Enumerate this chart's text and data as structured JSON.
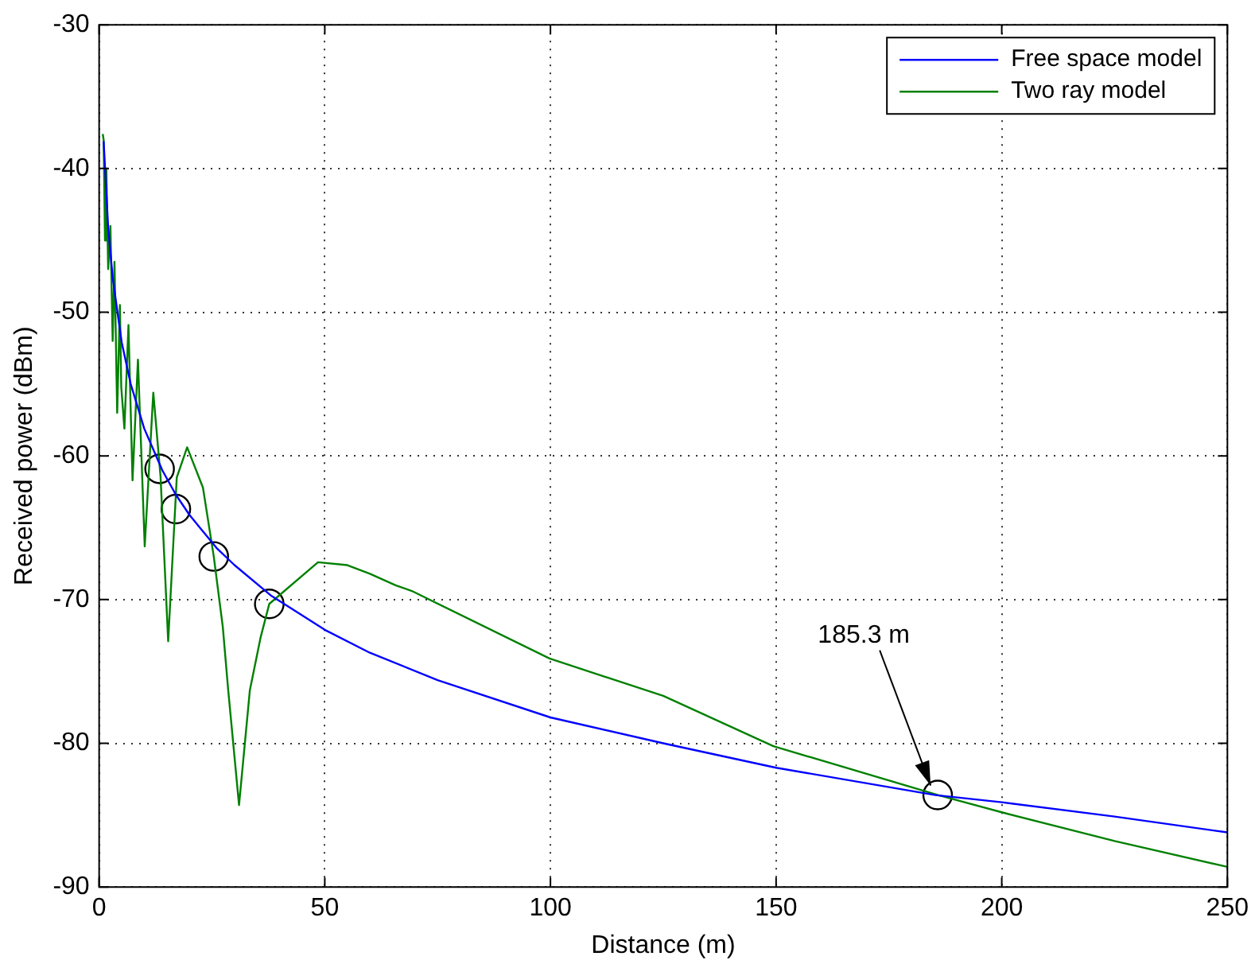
{
  "chart_data": {
    "type": "line",
    "xlabel": "Distance (m)",
    "ylabel": "Received power (dBm)",
    "xlim": [
      0,
      250
    ],
    "xticks": [
      0,
      50,
      100,
      150,
      200,
      250
    ],
    "ylim": [
      -90,
      -30
    ],
    "yticks": [
      -90,
      -80,
      -70,
      -60,
      -50,
      -40,
      -30
    ],
    "grid": true,
    "legend": "top right",
    "marker": "none",
    "line_style": "solid",
    "series": [
      {
        "name": "Free space model",
        "color": "#0000ff",
        "x": [
          1,
          2,
          3,
          5,
          7,
          10,
          14,
          17,
          20,
          26,
          30,
          38,
          50,
          60,
          75,
          100,
          125,
          150,
          185.3,
          200,
          225,
          250
        ],
        "values": [
          -38.1,
          -44.1,
          -47.6,
          -52.1,
          -55,
          -58.1,
          -61,
          -62.7,
          -64.1,
          -66.4,
          -67.6,
          -69.7,
          -72.1,
          -73.7,
          -75.6,
          -78.2,
          -80,
          -81.7,
          -83.6,
          -84.1,
          -85.1,
          -86.2
        ]
      },
      {
        "name": "Two ray model",
        "color": "#008000",
        "x": [
          0.8,
          1,
          1.3,
          1.6,
          2,
          2.5,
          3,
          3.4,
          4,
          4.6,
          4.9,
          5.6,
          6.5,
          7.4,
          8.6,
          10.1,
          12,
          13.6,
          15.3,
          17.2,
          19.5,
          23,
          25.4,
          27.4,
          28.6,
          31,
          33.4,
          35.8,
          37.7,
          48.5,
          55,
          60,
          65.7,
          69.3,
          99.8,
          125,
          149.4,
          185.9,
          200,
          225,
          250
        ],
        "values": [
          -37.6,
          -38,
          -45,
          -40,
          -47,
          -44,
          -52,
          -46.5,
          -57,
          -49.5,
          -55.2,
          -58.1,
          -50.9,
          -61.7,
          -53.3,
          -66.3,
          -55.6,
          -61.4,
          -72.9,
          -61.5,
          -59.4,
          -62.2,
          -67,
          -71.9,
          -76.3,
          -84.3,
          -76.3,
          -72.6,
          -70.3,
          -67.4,
          -67.6,
          -68.2,
          -69,
          -69.4,
          -74.1,
          -76.7,
          -80.2,
          -83.6,
          -84.8,
          -86.8,
          -88.6
        ]
      },
      {
        "type": "scatter",
        "marker": "circle",
        "color": "#000000",
        "x": [
          13.4,
          17,
          25.4,
          37.7,
          185.8
        ],
        "values": [
          -60.9,
          -63.7,
          -67,
          -70.3,
          -83.6
        ]
      }
    ],
    "annotations": [
      {
        "text": "185.3 m",
        "x": 185.3,
        "y": -83.6
      }
    ]
  }
}
